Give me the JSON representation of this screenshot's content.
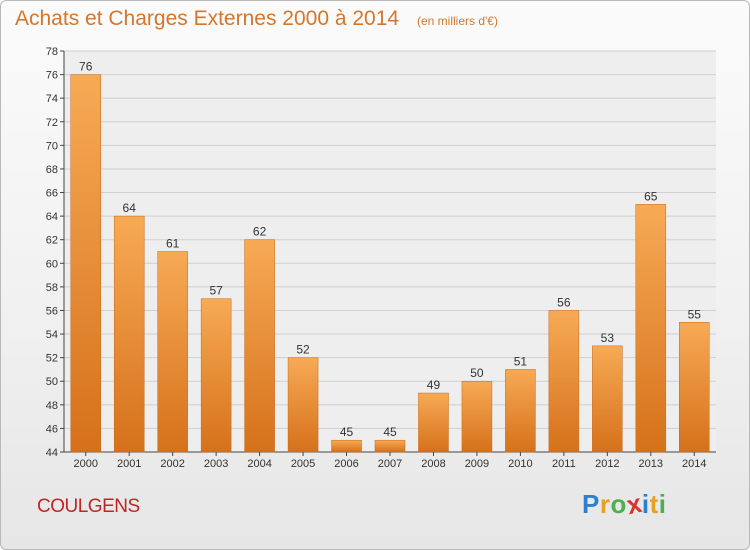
{
  "header": {
    "title": "Achats et Charges Externes 2000 à 2014",
    "unit": "(en milliers d'€)"
  },
  "commune": "COULGENS",
  "logo": {
    "text": "Proxiti",
    "letters": [
      {
        "char": "P",
        "color": "#2e7fd0"
      },
      {
        "char": "r",
        "color": "#e8a023"
      },
      {
        "char": "o",
        "color": "#4caf50"
      },
      {
        "char": "x",
        "color": "#d9342b"
      },
      {
        "char": "i",
        "color": "#2e7fd0"
      },
      {
        "char": "t",
        "color": "#e8a023"
      },
      {
        "char": "i",
        "color": "#4caf50"
      }
    ]
  },
  "colors": {
    "bar_light": "#f7aa55",
    "bar_dark": "#d6711b",
    "text": "#d5762a",
    "commune": "#c02626",
    "grid": "#cfcfcf",
    "axis": "#444444"
  },
  "chart_data": {
    "type": "bar",
    "title": "Achats et Charges Externes 2000 à 2014",
    "subtitle": "(en milliers d'€)",
    "xlabel": "",
    "ylabel": "",
    "categories": [
      "2000",
      "2001",
      "2002",
      "2003",
      "2004",
      "2005",
      "2006",
      "2007",
      "2008",
      "2009",
      "2010",
      "2011",
      "2012",
      "2013",
      "2014"
    ],
    "values": [
      76,
      64,
      61,
      57,
      62,
      52,
      45,
      45,
      49,
      50,
      51,
      56,
      53,
      65,
      55
    ],
    "ylim": [
      44,
      78
    ],
    "yticks": [
      44,
      46,
      48,
      50,
      52,
      54,
      56,
      58,
      60,
      62,
      64,
      66,
      68,
      70,
      72,
      74,
      76,
      78
    ],
    "grid": true,
    "data_labels": true
  }
}
